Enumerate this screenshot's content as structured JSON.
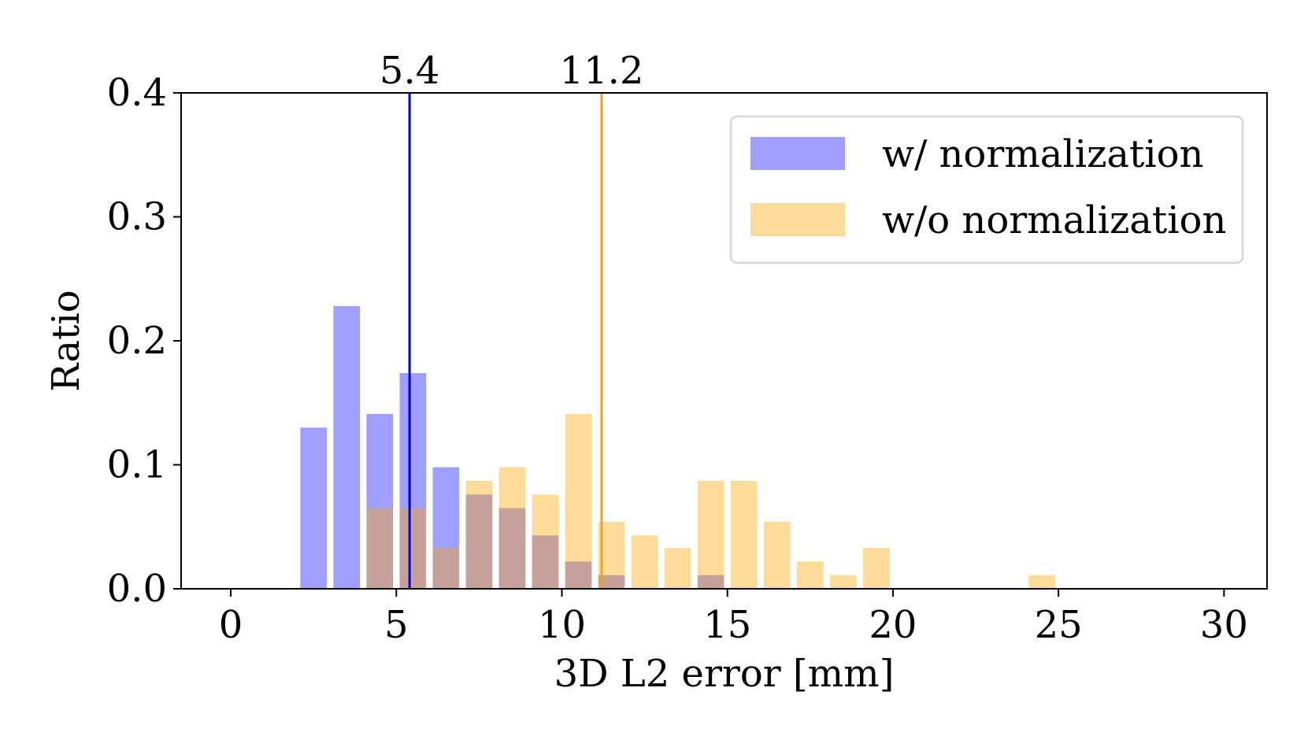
{
  "chart_data": {
    "type": "bar",
    "xlabel": "3D L2 error [mm]",
    "ylabel": "Ratio",
    "xlim": [
      -1.5,
      31.3
    ],
    "ylim": [
      0,
      0.4
    ],
    "x_ticks": [
      0,
      5,
      10,
      15,
      20,
      25,
      30
    ],
    "y_ticks": [
      0.0,
      0.1,
      0.2,
      0.3,
      0.4
    ],
    "y_tick_labels": [
      "0.0",
      "0.1",
      "0.2",
      "0.3",
      "0.4"
    ],
    "bin_width": 1.0,
    "bar_width": 0.8,
    "bin_centers": [
      2.5,
      3.5,
      4.5,
      5.5,
      6.5,
      7.5,
      8.5,
      9.5,
      10.5,
      11.5,
      12.5,
      13.5,
      14.5,
      15.5,
      16.5,
      17.5,
      18.5,
      19.5,
      20.5,
      21.5,
      22.5,
      23.5,
      24.5
    ],
    "series": [
      {
        "name": "w/ normalization",
        "color": "#4040ff",
        "opacity": 0.5,
        "values": [
          0.13,
          0.228,
          0.141,
          0.174,
          0.098,
          0.076,
          0.065,
          0.043,
          0.022,
          0.011,
          0.0,
          0.0,
          0.011,
          0.0,
          0.0,
          0.0,
          0.0,
          0.0,
          0.0,
          0.0,
          0.0,
          0.0,
          0.0
        ]
      },
      {
        "name": "w/o normalization",
        "color": "#ffa500",
        "opacity": 0.4,
        "values": [
          0.0,
          0.0,
          0.065,
          0.065,
          0.033,
          0.087,
          0.098,
          0.076,
          0.141,
          0.054,
          0.043,
          0.033,
          0.087,
          0.087,
          0.054,
          0.022,
          0.011,
          0.033,
          0.0,
          0.0,
          0.0,
          0.0,
          0.011
        ]
      }
    ],
    "vlines": [
      {
        "x": 5.4,
        "label": "5.4",
        "color": "#0000dd"
      },
      {
        "x": 11.2,
        "label": "11.2",
        "color": "#f0a020"
      }
    ],
    "legend": {
      "position": "top-right"
    }
  }
}
